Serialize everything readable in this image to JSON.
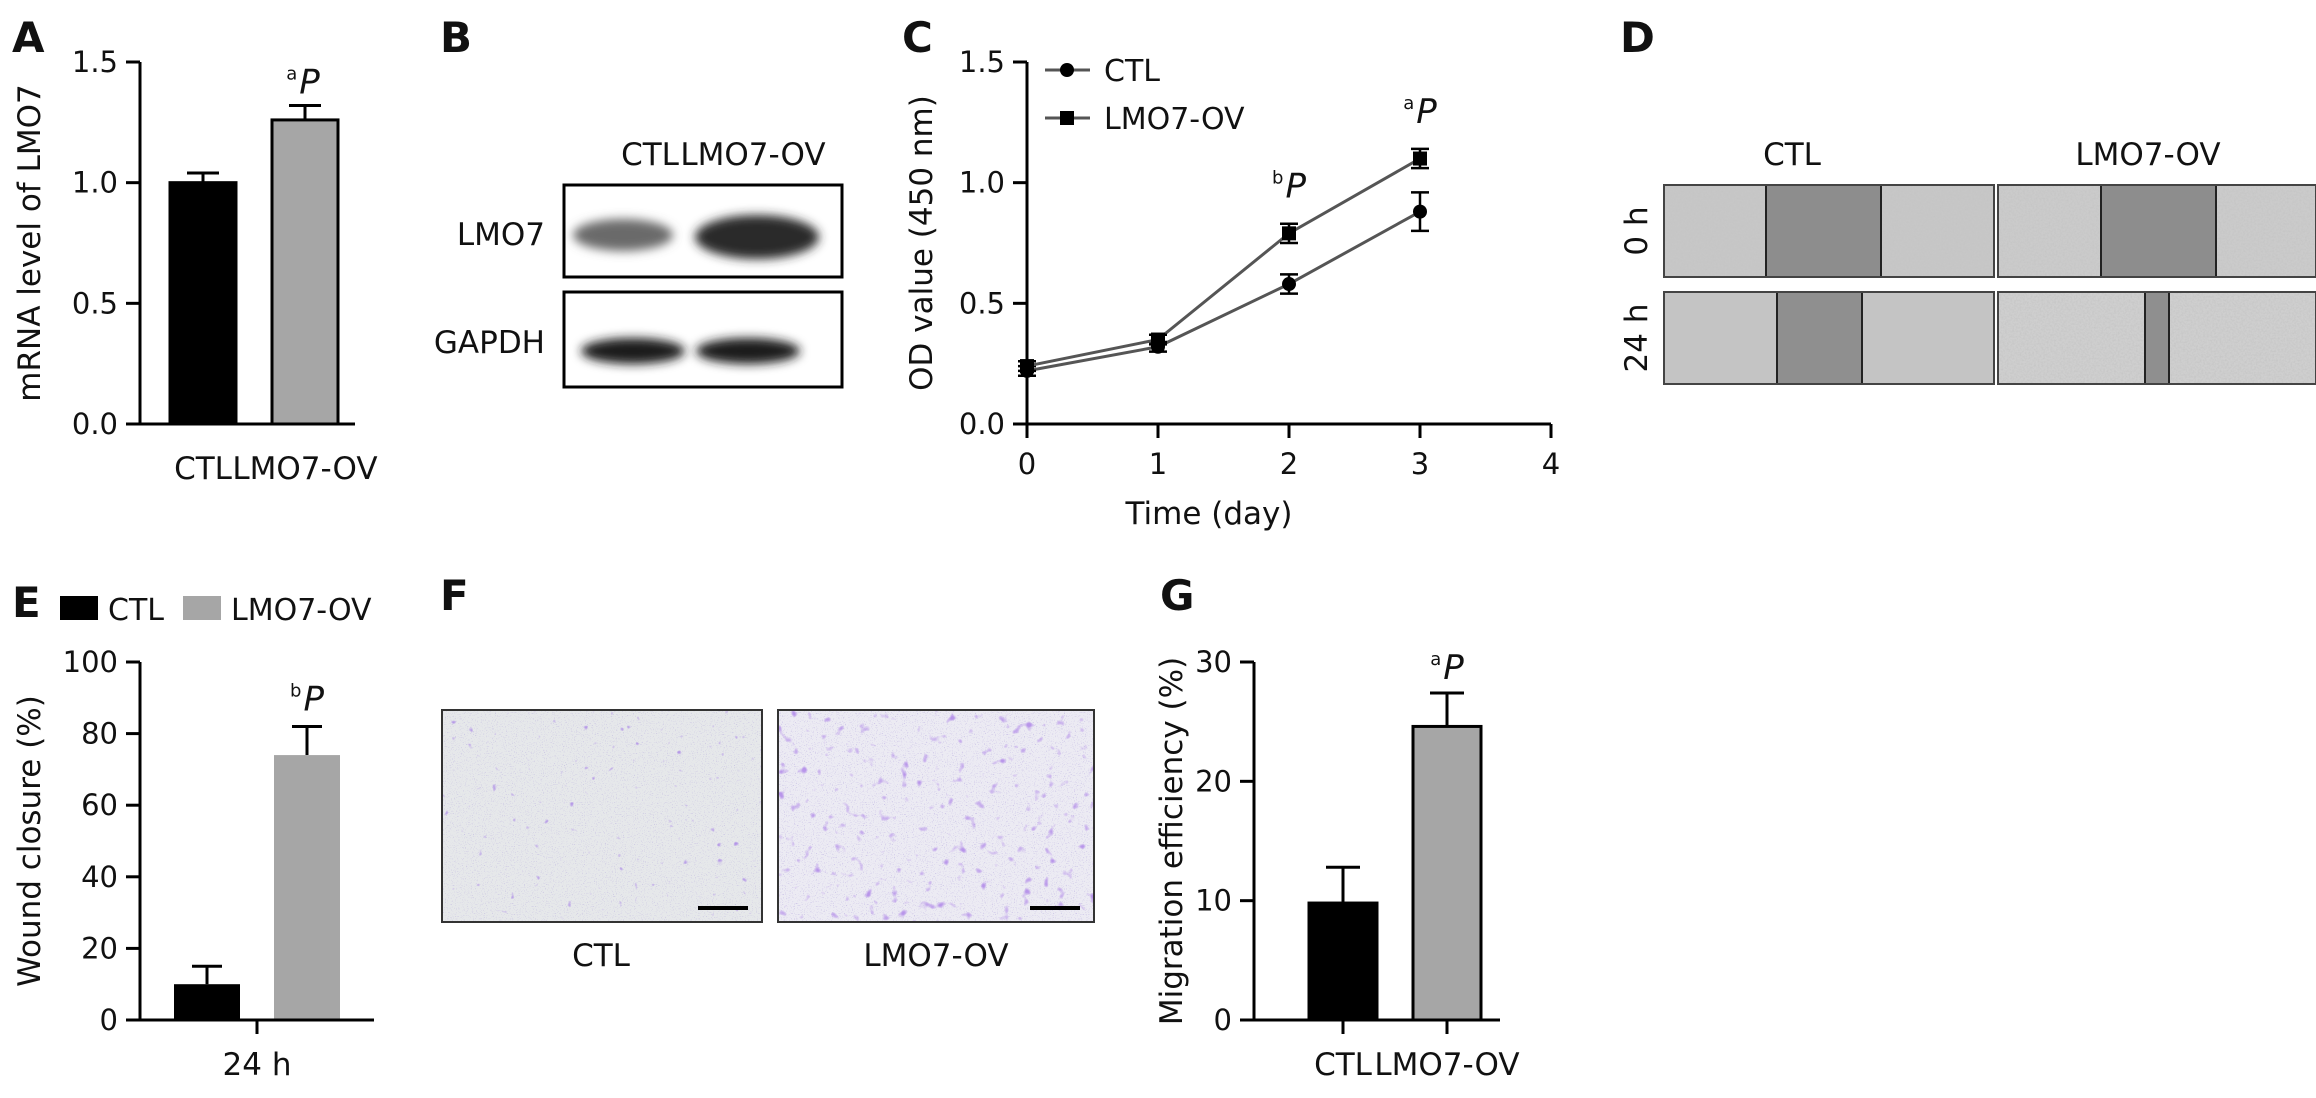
{
  "panels": {
    "A": "A",
    "B": "B",
    "C": "C",
    "D": "D",
    "E": "E",
    "F": "F",
    "G": "G"
  },
  "chart_data": [
    {
      "panel": "A",
      "type": "bar",
      "categories": [
        "CTL",
        "LMO7-OV"
      ],
      "values": [
        1.0,
        1.26
      ],
      "errors": [
        0.04,
        0.06
      ],
      "colors": [
        "#000000",
        "#a6a6a6"
      ],
      "ylabel": "mRNA level of LMO7",
      "ylim": [
        0,
        1.5
      ],
      "yticks": [
        "0.0",
        "0.5",
        "1.0",
        "1.5"
      ],
      "significance": {
        "letter": "a",
        "symbol": "P",
        "category": "LMO7-OV"
      }
    },
    {
      "panel": "C",
      "type": "line",
      "x": [
        0,
        1,
        2,
        3
      ],
      "series": [
        {
          "name": "CTL",
          "marker": "circle",
          "values": [
            0.22,
            0.32,
            0.58,
            0.88
          ],
          "errors": [
            0.02,
            0.02,
            0.04,
            0.08
          ]
        },
        {
          "name": "LMO7-OV",
          "marker": "square",
          "values": [
            0.24,
            0.35,
            0.79,
            1.1
          ],
          "errors": [
            0.02,
            0.02,
            0.04,
            0.04
          ]
        }
      ],
      "xlabel": "Time (day)",
      "ylabel": "OD value (450 nm)",
      "xlim": [
        0,
        4
      ],
      "ylim": [
        0,
        1.5
      ],
      "xticks": [
        "0",
        "1",
        "2",
        "3",
        "4"
      ],
      "yticks": [
        "0.0",
        "0.5",
        "1.0",
        "1.5"
      ],
      "annotations": [
        {
          "letter": "b",
          "symbol": "P",
          "x": 2
        },
        {
          "letter": "a",
          "symbol": "P",
          "x": 3
        }
      ],
      "legend": "top-left"
    },
    {
      "panel": "E",
      "type": "bar",
      "categories": [
        "24 h"
      ],
      "series": [
        {
          "name": "CTL",
          "values": [
            10
          ],
          "errors": [
            5
          ],
          "color": "#000000"
        },
        {
          "name": "LMO7-OV",
          "values": [
            74
          ],
          "errors": [
            8
          ],
          "color": "#a6a6a6"
        }
      ],
      "ylabel": "Wound closure (%)",
      "ylim": [
        0,
        100
      ],
      "yticks": [
        "0",
        "20",
        "40",
        "60",
        "80",
        "100"
      ],
      "significance": {
        "letter": "b",
        "symbol": "P",
        "series": "LMO7-OV"
      },
      "legend": "top"
    },
    {
      "panel": "G",
      "type": "bar",
      "categories": [
        "CTL",
        "LMO7-OV"
      ],
      "values": [
        9.8,
        24.6
      ],
      "errors": [
        3.0,
        2.8
      ],
      "colors": [
        "#000000",
        "#a6a6a6"
      ],
      "ylabel": "Migration efficiency (%)",
      "ylim": [
        0,
        30
      ],
      "yticks": [
        "0",
        "10",
        "20",
        "30"
      ],
      "significance": {
        "letter": "a",
        "symbol": "P",
        "category": "LMO7-OV"
      }
    }
  ],
  "blot": {
    "columns": [
      "CTL",
      "LMO7-OV"
    ],
    "rows": [
      "LMO7",
      "GAPDH"
    ]
  },
  "wound": {
    "columns": [
      "CTL",
      "LMO7-OV"
    ],
    "rows": [
      "0 h",
      "24 h"
    ]
  },
  "transwell": {
    "labels": [
      "CTL",
      "LMO7-OV"
    ]
  }
}
